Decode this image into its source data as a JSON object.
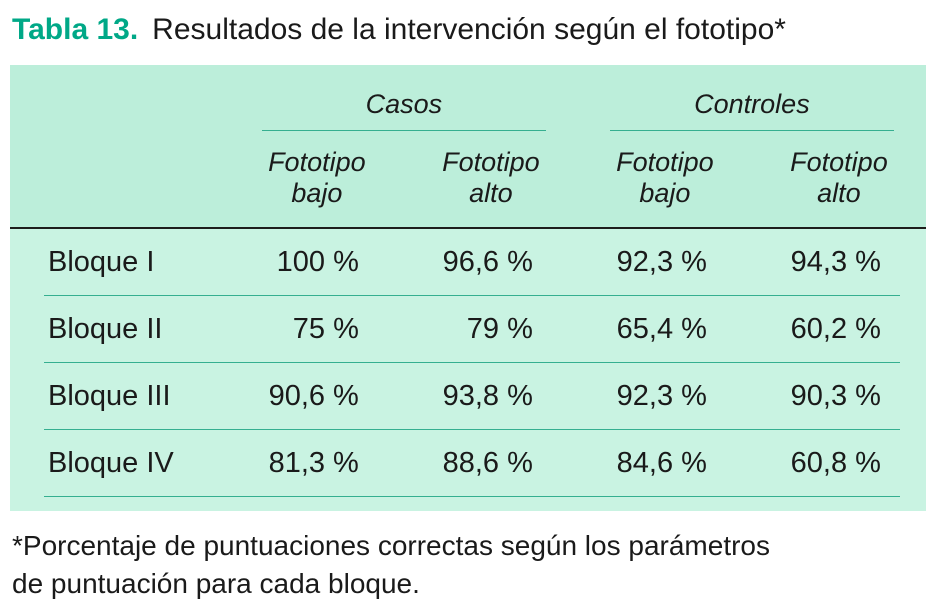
{
  "title": {
    "label": "Tabla 13.",
    "text": "Resultados de la intervención según el fototipo*"
  },
  "table": {
    "groups": [
      {
        "label": "Casos"
      },
      {
        "label": "Controles"
      }
    ],
    "columns": [
      "Fototipo\nbajo",
      "Fototipo\nalto",
      "Fototipo\nbajo",
      "Fototipo\nalto"
    ],
    "rows": [
      {
        "label": "Bloque I",
        "values": [
          "100 %",
          "96,6 %",
          "92,3 %",
          "94,3 %"
        ]
      },
      {
        "label": "Bloque II",
        "values": [
          "75 %",
          "79 %",
          "65,4 %",
          "60,2 %"
        ]
      },
      {
        "label": "Bloque III",
        "values": [
          "90,6 %",
          "93,8 %",
          "92,3 %",
          "90,3 %"
        ]
      },
      {
        "label": "Bloque IV",
        "values": [
          "81,3 %",
          "88,6 %",
          "84,6 %",
          "60,8 %"
        ]
      }
    ]
  },
  "footnote": "*Porcentaje de puntuaciones correctas según los parámetros\nde puntuación para cada bloque.",
  "colors": {
    "accent_green": "#00a887",
    "table_header_bg": "#bceeda",
    "table_body_bg": "#c9f3e2",
    "rule_green": "#35af90",
    "rule_dark": "#1d1d1b",
    "text": "#1a1a1a"
  }
}
